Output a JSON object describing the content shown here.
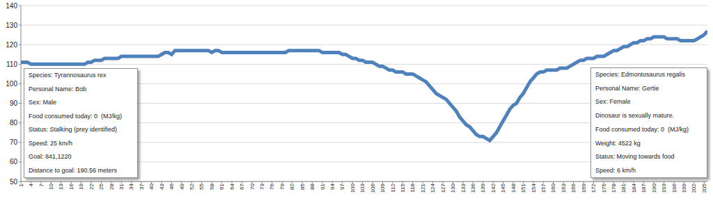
{
  "chart_data": {
    "type": "line",
    "grid": true,
    "legend": false,
    "color": "#4f81bd",
    "xlim": [
      1,
      206
    ],
    "ylim": [
      50,
      140
    ],
    "yticks": [
      50,
      60,
      70,
      80,
      90,
      100,
      110,
      120,
      130,
      140
    ],
    "xticks": [
      1,
      4,
      7,
      10,
      13,
      16,
      19,
      22,
      25,
      28,
      31,
      34,
      37,
      40,
      43,
      46,
      49,
      52,
      55,
      58,
      61,
      64,
      67,
      70,
      73,
      76,
      79,
      82,
      85,
      88,
      91,
      94,
      97,
      100,
      103,
      106,
      109,
      112,
      115,
      118,
      121,
      124,
      127,
      130,
      133,
      136,
      139,
      142,
      145,
      148,
      151,
      154,
      157,
      160,
      163,
      166,
      169,
      172,
      175,
      178,
      181,
      184,
      187,
      190,
      193,
      196,
      199,
      202,
      205
    ],
    "x": [
      1,
      2,
      3,
      4,
      5,
      6,
      7,
      8,
      9,
      10,
      11,
      12,
      13,
      14,
      15,
      16,
      17,
      18,
      19,
      20,
      21,
      22,
      23,
      24,
      25,
      26,
      27,
      28,
      29,
      30,
      31,
      32,
      33,
      34,
      35,
      36,
      37,
      38,
      39,
      40,
      41,
      42,
      43,
      44,
      45,
      46,
      47,
      48,
      49,
      50,
      51,
      52,
      53,
      54,
      55,
      56,
      57,
      58,
      59,
      60,
      61,
      62,
      63,
      64,
      65,
      66,
      67,
      68,
      69,
      70,
      71,
      72,
      73,
      74,
      75,
      76,
      77,
      78,
      79,
      80,
      81,
      82,
      83,
      84,
      85,
      86,
      87,
      88,
      89,
      90,
      91,
      92,
      93,
      94,
      95,
      96,
      97,
      98,
      99,
      100,
      101,
      102,
      103,
      104,
      105,
      106,
      107,
      108,
      109,
      110,
      111,
      112,
      113,
      114,
      115,
      116,
      117,
      118,
      119,
      120,
      121,
      122,
      123,
      124,
      125,
      126,
      127,
      128,
      129,
      130,
      131,
      132,
      133,
      134,
      135,
      136,
      137,
      138,
      139,
      140,
      141,
      142,
      143,
      144,
      145,
      146,
      147,
      148,
      149,
      150,
      151,
      152,
      153,
      154,
      155,
      156,
      157,
      158,
      159,
      160,
      161,
      162,
      163,
      164,
      165,
      166,
      167,
      168,
      169,
      170,
      171,
      172,
      173,
      174,
      175,
      176,
      177,
      178,
      179,
      180,
      181,
      182,
      183,
      184,
      185,
      186,
      187,
      188,
      189,
      190,
      191,
      192,
      193,
      194,
      195,
      196,
      197,
      198,
      199,
      200,
      201,
      202,
      203,
      204,
      205,
      206
    ],
    "values": [
      111,
      111,
      111,
      110,
      110,
      110,
      110,
      110,
      110,
      110,
      110,
      110,
      110,
      110,
      110,
      110,
      110,
      110,
      110,
      110,
      111,
      111,
      112,
      112,
      112,
      113,
      113,
      113,
      113,
      113,
      114,
      114,
      114,
      114,
      114,
      114,
      114,
      114,
      114,
      114,
      114,
      114,
      115,
      116,
      116,
      115,
      117,
      117,
      117,
      117,
      117,
      117,
      117,
      117,
      117,
      117,
      117,
      116,
      117,
      117,
      116,
      116,
      116,
      116,
      116,
      116,
      116,
      116,
      116,
      116,
      116,
      116,
      116,
      116,
      116,
      116,
      116,
      116,
      116,
      116,
      117,
      117,
      117,
      117,
      117,
      117,
      117,
      117,
      117,
      117,
      116,
      116,
      116,
      116,
      116,
      116,
      115,
      115,
      114,
      113,
      113,
      112,
      112,
      111,
      111,
      111,
      110,
      109,
      109,
      108,
      107,
      107,
      106,
      106,
      106,
      105,
      105,
      105,
      104,
      103,
      102,
      101,
      99,
      97,
      95,
      94,
      93,
      92,
      90,
      88,
      86,
      83,
      81,
      79,
      78,
      76,
      74,
      73,
      73,
      72,
      71,
      73,
      75,
      78,
      81,
      84,
      87,
      89,
      90,
      93,
      95,
      98,
      101,
      103,
      105,
      106,
      106,
      107,
      107,
      107,
      107,
      108,
      108,
      108,
      109,
      110,
      111,
      112,
      112,
      113,
      113,
      113,
      114,
      114,
      114,
      115,
      116,
      117,
      117,
      118,
      119,
      119,
      120,
      121,
      121,
      122,
      122,
      123,
      123,
      124,
      124,
      124,
      124,
      123,
      123,
      123,
      123,
      122,
      122,
      122,
      122,
      122,
      123,
      124,
      125,
      127
    ],
    "annotations": [
      {
        "lines": [
          "Species: Tyrannosaurus rex",
          "Personal Name: Bob",
          "Sex: Male",
          "Food consumed today: 0  (MJ/kg)",
          "Status: Stalking (prey identified)",
          "Speed: 25 km/h",
          "Goal: 841,1220",
          "Distance to goal: 190.56 meters"
        ]
      },
      {
        "lines": [
          "Species: Edmontosaurus regalis",
          "Personal Name: Gertie",
          "Sex: Female",
          "Dinosaur is sexually mature.",
          "Food consumed today: 0  (MJ/kg)",
          "Weight: 4522 kg",
          "Status: Moving towards food",
          "Speed: 6 km/h"
        ]
      }
    ]
  }
}
